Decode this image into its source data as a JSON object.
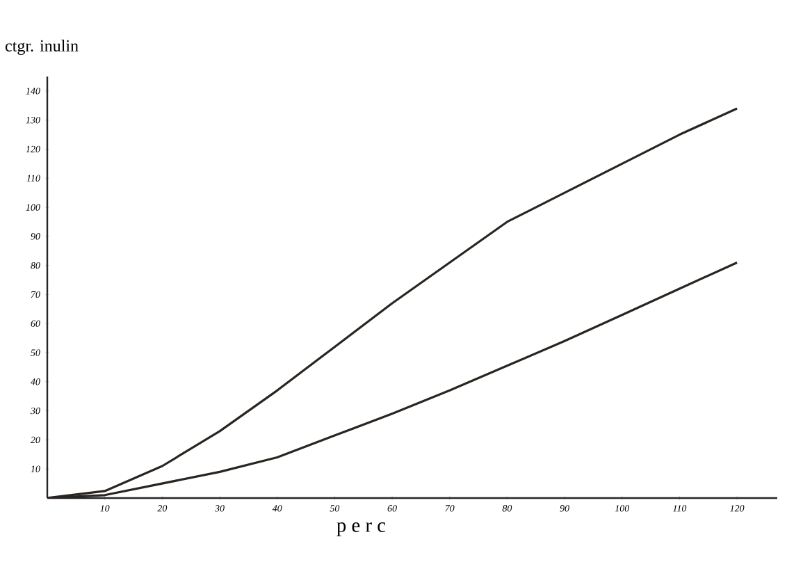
{
  "chart_data": {
    "type": "line",
    "xlabel": "p e r c",
    "ylabel": "ctgr. inulin",
    "x": [
      0,
      10,
      20,
      30,
      40,
      50,
      60,
      70,
      80,
      90,
      100,
      110,
      120
    ],
    "series": [
      {
        "color": "#2a2520",
        "values": [
          0,
          2.4,
          11,
          23,
          37,
          52,
          67,
          81,
          95,
          105,
          115,
          125,
          134
        ]
      },
      {
        "color": "#2a2520",
        "values": [
          0,
          1,
          5,
          9,
          14,
          21.5,
          29,
          37,
          45.5,
          54,
          63,
          72,
          81
        ]
      }
    ],
    "xlim": [
      0,
      127
    ],
    "ylim": [
      0,
      145
    ],
    "xticks": [
      10,
      20,
      30,
      40,
      50,
      60,
      70,
      80,
      90,
      100,
      110,
      120
    ],
    "yticks": [
      10,
      20,
      30,
      40,
      50,
      60,
      70,
      80,
      90,
      100,
      110,
      120,
      130,
      140
    ],
    "grid": false,
    "marker": "none",
    "line_style": "solid"
  }
}
